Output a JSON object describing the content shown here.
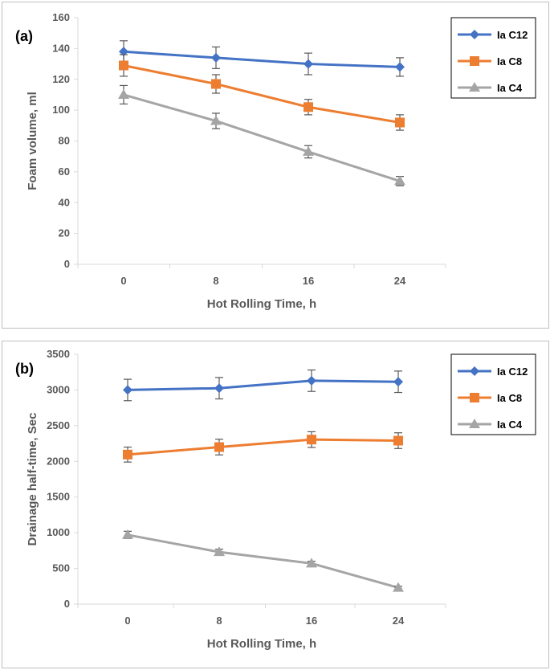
{
  "chart_data": [
    {
      "type": "line",
      "panel_label": "(a)",
      "xlabel": "Hot Rolling Time, h",
      "ylabel": "Foam volume, ml",
      "categories": [
        "0",
        "8",
        "16",
        "24"
      ],
      "ylim": [
        0,
        160
      ],
      "yticks": [
        0,
        20,
        40,
        60,
        80,
        100,
        120,
        140,
        160
      ],
      "series": [
        {
          "name": "Ia C12",
          "color": "#4472c4",
          "marker": "diamond",
          "values": [
            138,
            134,
            130,
            128
          ],
          "errors": [
            7,
            7,
            7,
            6
          ]
        },
        {
          "name": "Ia C8",
          "color": "#ed7d31",
          "marker": "square",
          "values": [
            129,
            117,
            102,
            92
          ],
          "errors": [
            7,
            6,
            5,
            5
          ]
        },
        {
          "name": "Ia C4",
          "color": "#a5a5a5",
          "marker": "triangle",
          "values": [
            110,
            93,
            73,
            54
          ],
          "errors": [
            6,
            5,
            4,
            3
          ]
        }
      ]
    },
    {
      "type": "line",
      "panel_label": "(b)",
      "xlabel": "Hot Rolling Time, h",
      "ylabel": "Drainage half-time, Sec",
      "categories": [
        "0",
        "8",
        "16",
        "24"
      ],
      "ylim": [
        0,
        3500
      ],
      "yticks": [
        0,
        500,
        1000,
        1500,
        2000,
        2500,
        3000,
        3500
      ],
      "series": [
        {
          "name": "Ia C12",
          "color": "#4472c4",
          "marker": "diamond",
          "values": [
            3000,
            3025,
            3130,
            3115
          ],
          "errors": [
            150,
            150,
            150,
            150
          ]
        },
        {
          "name": "Ia C8",
          "color": "#ed7d31",
          "marker": "square",
          "values": [
            2095,
            2200,
            2305,
            2290
          ],
          "errors": [
            105,
            110,
            110,
            110
          ]
        },
        {
          "name": "Ia C4",
          "color": "#a5a5a5",
          "marker": "triangle",
          "values": [
            970,
            730,
            570,
            230
          ],
          "errors": [
            50,
            40,
            30,
            20
          ]
        }
      ]
    }
  ]
}
